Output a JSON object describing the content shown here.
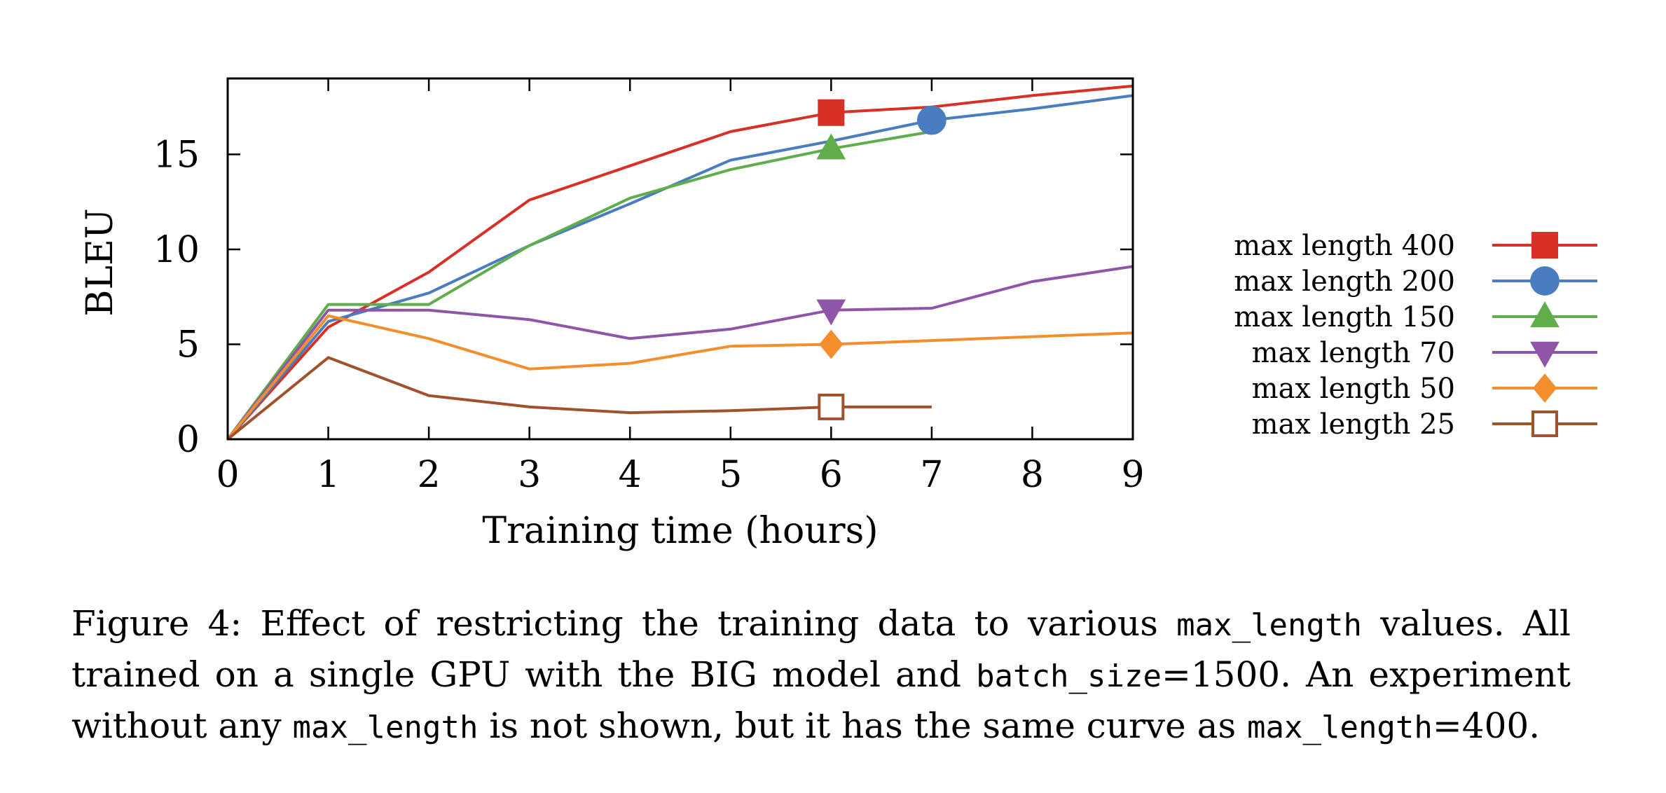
{
  "chart_data": {
    "type": "line",
    "title": "",
    "xlabel": "Training time (hours)",
    "ylabel": "BLEU",
    "xlim": [
      0,
      9
    ],
    "ylim": [
      0,
      19
    ],
    "xticks": [
      0,
      1,
      2,
      3,
      4,
      5,
      6,
      7,
      8,
      9
    ],
    "yticks": [
      0,
      5,
      10,
      15
    ],
    "grid": false,
    "legend_position": "right",
    "series": [
      {
        "name": "max length 400",
        "color": "#d73027",
        "marker": "square-filled",
        "marker_at_x": 6,
        "x": [
          0,
          1,
          2,
          3,
          4,
          5,
          6,
          7,
          8,
          9
        ],
        "y": [
          0,
          5.9,
          8.8,
          12.6,
          14.4,
          16.2,
          17.2,
          17.5,
          18.1,
          18.6
        ]
      },
      {
        "name": "max length 200",
        "color": "#4a7dbf",
        "marker": "circle-filled",
        "marker_at_x": 7,
        "x": [
          0,
          1,
          2,
          3,
          4,
          5,
          6,
          7,
          8,
          9
        ],
        "y": [
          0,
          6.2,
          7.7,
          10.2,
          12.4,
          14.7,
          15.7,
          16.8,
          17.4,
          18.1
        ]
      },
      {
        "name": "max length 150",
        "color": "#5fae4b",
        "marker": "triangle-up-filled",
        "marker_at_x": 6,
        "x": [
          0,
          1,
          2,
          3,
          4,
          5,
          6,
          7
        ],
        "y": [
          0,
          7.1,
          7.1,
          10.2,
          12.7,
          14.2,
          15.3,
          16.2
        ]
      },
      {
        "name": "max length 70",
        "color": "#8e55a8",
        "marker": "triangle-down-filled",
        "marker_at_x": 6,
        "x": [
          0,
          1,
          2,
          3,
          4,
          5,
          6,
          7,
          8,
          9
        ],
        "y": [
          0,
          6.8,
          6.8,
          6.3,
          5.3,
          5.8,
          6.8,
          6.9,
          8.3,
          9.1
        ]
      },
      {
        "name": "max length 50",
        "color": "#f28e2b",
        "marker": "diamond-filled",
        "marker_at_x": 6,
        "x": [
          0,
          1,
          2,
          3,
          4,
          5,
          6,
          7,
          8,
          9
        ],
        "y": [
          0,
          6.5,
          5.3,
          3.7,
          4.0,
          4.9,
          5.0,
          5.2,
          5.4,
          5.6
        ]
      },
      {
        "name": "max length 25",
        "color": "#a0522d",
        "marker": "square-open",
        "marker_at_x": 6,
        "x": [
          0,
          1,
          2,
          3,
          4,
          5,
          6,
          7
        ],
        "y": [
          0,
          4.3,
          2.3,
          1.7,
          1.4,
          1.5,
          1.7,
          1.7
        ]
      }
    ]
  },
  "caption": {
    "line1_a": "Figure 4:  Effect of restricting the training data to various ",
    "line1_code": "max_length",
    "line1_b": " values.  All",
    "line2_a": "trained on a single GPU with the BIG model and ",
    "line2_code": "batch_size",
    "line2_b": "=1500.  An experiment",
    "line3_a": "without any ",
    "line3_code1": "max_length",
    "line3_b": " is not shown, but it has the same curve as ",
    "line3_code2": "max_length",
    "line3_c": "=400."
  }
}
